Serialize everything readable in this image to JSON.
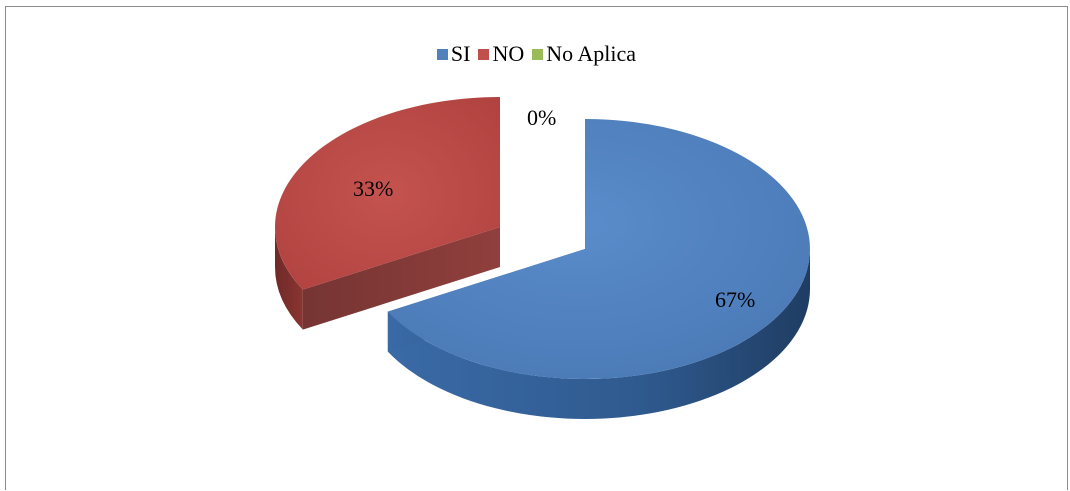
{
  "chart_data": {
    "type": "pie",
    "title": "",
    "categories": [
      "SI",
      "NO",
      "No Aplica"
    ],
    "values": [
      67,
      33,
      0
    ],
    "value_suffix": "%",
    "colors": [
      "#4f81bd",
      "#c0504d",
      "#9bbb59"
    ],
    "legend_position": "top",
    "style": "3d-exploded"
  },
  "labels": {
    "si": "67%",
    "no": "33%",
    "na": "0%"
  }
}
